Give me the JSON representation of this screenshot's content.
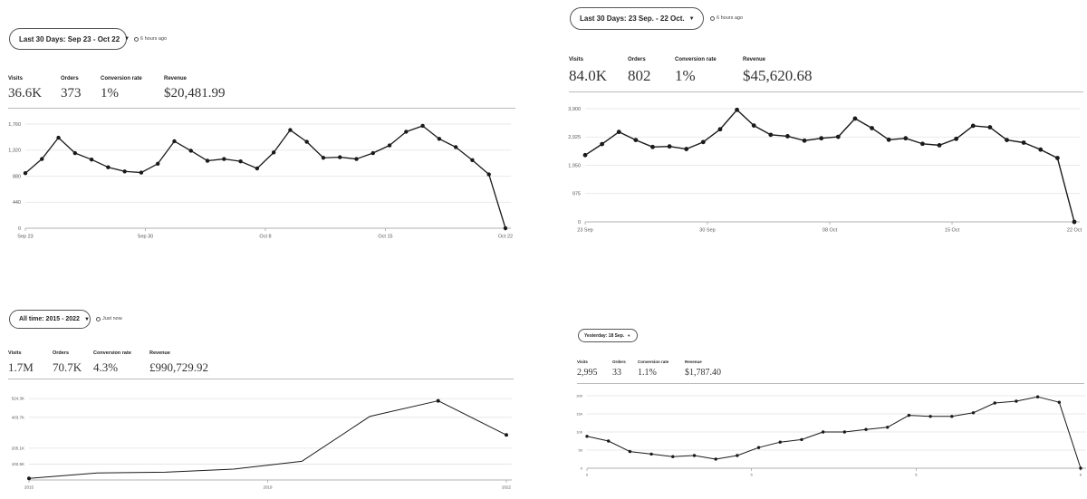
{
  "panels": [
    {
      "range_label": "Last 30 Days: Sep 23 - Oct 22",
      "updated": "6 hours ago",
      "metrics": [
        {
          "label": "Visits",
          "value": "36.6K"
        },
        {
          "label": "Orders",
          "value": "373"
        },
        {
          "label": "Conversion rate",
          "value": "1%"
        },
        {
          "label": "Revenue",
          "value": "$20,481.99"
        }
      ]
    },
    {
      "range_label": "Last 30 Days: 23 Sep. - 22 Oct.",
      "updated": "6 hours ago",
      "metrics": [
        {
          "label": "Visits",
          "value": "84.0K"
        },
        {
          "label": "Orders",
          "value": "802"
        },
        {
          "label": "Conversion rate",
          "value": "1%"
        },
        {
          "label": "Revenue",
          "value": "$45,620.68"
        }
      ]
    },
    {
      "range_label": "All time: 2015 - 2022",
      "updated": "Just now",
      "metrics": [
        {
          "label": "Visits",
          "value": "1.7M"
        },
        {
          "label": "Orders",
          "value": "70.7K"
        },
        {
          "label": "Conversion rate",
          "value": "4.3%"
        },
        {
          "label": "Revenue",
          "value": "£990,729.92"
        }
      ]
    },
    {
      "range_label": "Yesterday: 18 Sep.",
      "updated": "",
      "metrics": [
        {
          "label": "Visits",
          "value": "2,995"
        },
        {
          "label": "Orders",
          "value": "33"
        },
        {
          "label": "Conversion rate",
          "value": "1.1%"
        },
        {
          "label": "Revenue",
          "value": "$1,787.40"
        }
      ]
    }
  ],
  "chart_data": [
    {
      "type": "line",
      "x_tick_labels": [
        "Sep 23",
        "Sep 30",
        "Oct 8",
        "Oct 15",
        "Oct 22"
      ],
      "y_tick_labels": [
        "0",
        "440",
        "880",
        "1,320",
        "1,760"
      ],
      "ylim": [
        0,
        1760
      ],
      "grid": "horizontal",
      "values": [
        930,
        1170,
        1530,
        1270,
        1160,
        1030,
        960,
        940,
        1090,
        1470,
        1310,
        1140,
        1170,
        1130,
        1010,
        1280,
        1660,
        1460,
        1190,
        1200,
        1170,
        1270,
        1400,
        1630,
        1730,
        1510,
        1370,
        1150,
        910,
        0
      ]
    },
    {
      "type": "line",
      "x_tick_labels": [
        "23 Sep",
        "30 Sep",
        "08 Oct",
        "15 Oct",
        "22 Oct"
      ],
      "y_tick_labels": [
        "0",
        "975",
        "1,950",
        "2,925",
        "3,900"
      ],
      "ylim": [
        0,
        3900
      ],
      "grid": "horizontal",
      "values": [
        2300,
        2680,
        3100,
        2820,
        2580,
        2600,
        2510,
        2750,
        3190,
        3860,
        3320,
        3000,
        2950,
        2800,
        2880,
        2930,
        3560,
        3230,
        2830,
        2880,
        2690,
        2640,
        2860,
        3310,
        3260,
        2820,
        2730,
        2490,
        2200,
        0
      ]
    },
    {
      "type": "line",
      "x_tick_labels": [
        "2015",
        "2019",
        "2022"
      ],
      "y_tick_labels": [
        "102.5K",
        "205.1K",
        "403.7K",
        "524.3K"
      ],
      "ylim": [
        0,
        560000
      ],
      "grid": "horizontal",
      "values": [
        10000,
        45000,
        50000,
        70000,
        120000,
        410000,
        510000,
        290000
      ]
    },
    {
      "type": "line",
      "x_tick_labels": [
        "0",
        "5",
        "5",
        "6"
      ],
      "y_tick_labels": [
        "0",
        "50",
        "100",
        "150",
        "200"
      ],
      "ylim": [
        0,
        200
      ],
      "grid": "horizontal",
      "values": [
        88,
        75,
        46,
        39,
        32,
        35,
        25,
        35,
        57,
        72,
        79,
        100,
        100,
        107,
        113,
        146,
        143,
        143,
        153,
        180,
        185,
        197,
        182,
        0
      ]
    }
  ]
}
